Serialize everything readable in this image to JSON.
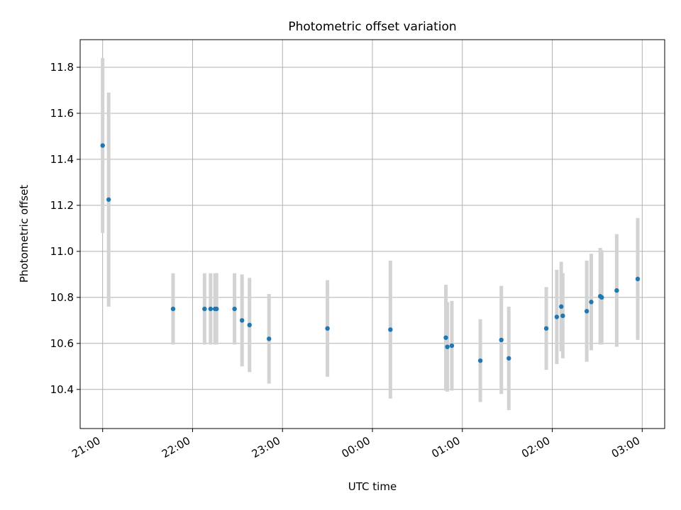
{
  "chart_data": {
    "type": "scatter",
    "title": "Photometric offset variation",
    "xlabel": "UTC time",
    "ylabel": "Photometric offset",
    "grid": true,
    "legend": "none",
    "colors": {
      "point": "#1f77b4",
      "errorbar": "#d3d3d3",
      "grid": "#b0b0b0"
    },
    "xlim": [
      "20:45",
      "03:15"
    ],
    "ylim": [
      10.23,
      11.92
    ],
    "x_ticks": [
      "21:00",
      "22:00",
      "23:00",
      "00:00",
      "01:00",
      "02:00",
      "03:00"
    ],
    "y_ticks": [
      "10.4",
      "10.6",
      "10.8",
      "11.0",
      "11.2",
      "11.4",
      "11.6",
      "11.8"
    ],
    "points": [
      {
        "x": "21:00",
        "y": 11.46,
        "err": 0.38
      },
      {
        "x": "21:04",
        "y": 11.225,
        "err": 0.465
      },
      {
        "x": "21:47",
        "y": 10.75,
        "err": 0.155
      },
      {
        "x": "22:08",
        "y": 10.75,
        "err": 0.155
      },
      {
        "x": "22:12",
        "y": 10.75,
        "err": 0.155
      },
      {
        "x": "22:15",
        "y": 10.75,
        "err": 0.155
      },
      {
        "x": "22:16",
        "y": 10.75,
        "err": 0.155
      },
      {
        "x": "22:28",
        "y": 10.75,
        "err": 0.155
      },
      {
        "x": "22:33",
        "y": 10.7,
        "err": 0.2
      },
      {
        "x": "22:38",
        "y": 10.68,
        "err": 0.205
      },
      {
        "x": "22:51",
        "y": 10.62,
        "err": 0.195
      },
      {
        "x": "23:30",
        "y": 10.665,
        "err": 0.21
      },
      {
        "x": "00:12",
        "y": 10.66,
        "err": 0.3
      },
      {
        "x": "00:49",
        "y": 10.625,
        "err": 0.23
      },
      {
        "x": "00:50",
        "y": 10.585,
        "err": 0.195
      },
      {
        "x": "00:53",
        "y": 10.59,
        "err": 0.195
      },
      {
        "x": "01:12",
        "y": 10.525,
        "err": 0.18
      },
      {
        "x": "01:26",
        "y": 10.615,
        "err": 0.235
      },
      {
        "x": "01:31",
        "y": 10.535,
        "err": 0.225
      },
      {
        "x": "01:56",
        "y": 10.665,
        "err": 0.18
      },
      {
        "x": "02:03",
        "y": 10.715,
        "err": 0.205
      },
      {
        "x": "02:06",
        "y": 10.76,
        "err": 0.195
      },
      {
        "x": "02:07",
        "y": 10.72,
        "err": 0.185
      },
      {
        "x": "02:23",
        "y": 10.74,
        "err": 0.22
      },
      {
        "x": "02:26",
        "y": 10.78,
        "err": 0.21
      },
      {
        "x": "02:32",
        "y": 10.805,
        "err": 0.21
      },
      {
        "x": "02:33",
        "y": 10.8,
        "err": 0.205
      },
      {
        "x": "02:43",
        "y": 10.83,
        "err": 0.245
      },
      {
        "x": "02:57",
        "y": 10.88,
        "err": 0.265
      }
    ]
  }
}
